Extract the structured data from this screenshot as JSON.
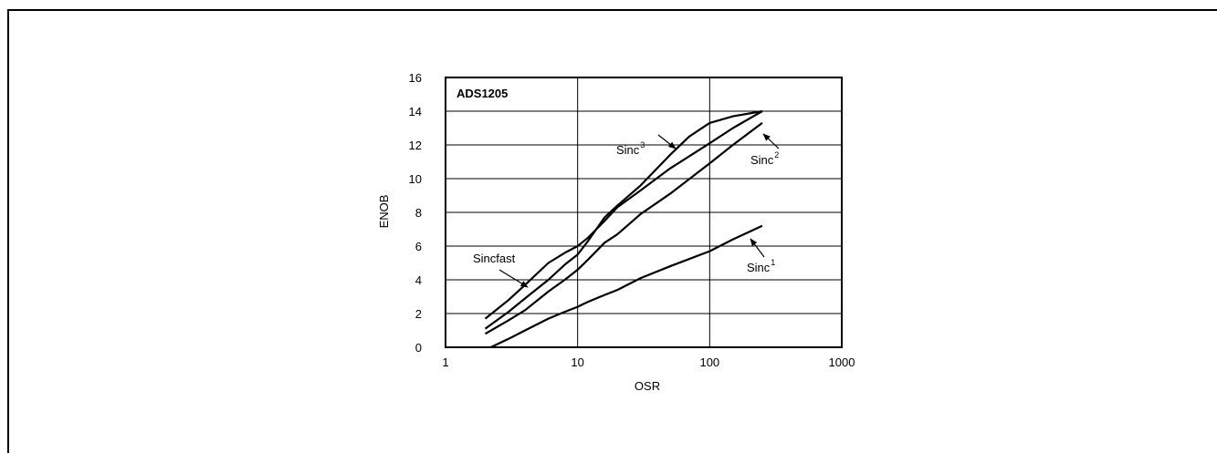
{
  "chart_data": {
    "type": "line",
    "title": "ADS1205",
    "xlabel": "OSR",
    "ylabel": "ENOB",
    "xscale": "log",
    "xlim": [
      1,
      1000
    ],
    "ylim": [
      0,
      16
    ],
    "grid": true,
    "x_ticks": [
      "1",
      "10",
      "100",
      "1000"
    ],
    "y_ticks": [
      "0",
      "2",
      "4",
      "6",
      "8",
      "10",
      "12",
      "14",
      "16"
    ],
    "series": [
      {
        "name": "Sincfast",
        "base": "Sincfast",
        "sup": "",
        "points": [
          [
            2,
            1.7
          ],
          [
            3,
            2.8
          ],
          [
            4,
            3.7
          ],
          [
            6,
            5.0
          ],
          [
            8,
            5.6
          ],
          [
            10,
            6.0
          ],
          [
            12,
            6.5
          ],
          [
            16,
            7.5
          ],
          [
            20,
            8.3
          ],
          [
            30,
            9.3
          ],
          [
            50,
            10.6
          ],
          [
            100,
            12.1
          ],
          [
            150,
            13.0
          ],
          [
            250,
            14.0
          ]
        ]
      },
      {
        "name": "Sinc3",
        "base": "Sinc",
        "sup": "3",
        "points": [
          [
            2,
            1.1
          ],
          [
            3,
            2.1
          ],
          [
            4,
            2.9
          ],
          [
            6,
            4.0
          ],
          [
            8,
            4.9
          ],
          [
            10,
            5.5
          ],
          [
            12,
            6.3
          ],
          [
            16,
            7.7
          ],
          [
            20,
            8.4
          ],
          [
            30,
            9.6
          ],
          [
            50,
            11.4
          ],
          [
            70,
            12.5
          ],
          [
            100,
            13.3
          ],
          [
            150,
            13.7
          ],
          [
            250,
            14.0
          ]
        ]
      },
      {
        "name": "Sinc2",
        "base": "Sinc",
        "sup": "2",
        "points": [
          [
            2,
            0.8
          ],
          [
            3,
            1.6
          ],
          [
            4,
            2.2
          ],
          [
            6,
            3.3
          ],
          [
            8,
            4.0
          ],
          [
            10,
            4.6
          ],
          [
            12,
            5.2
          ],
          [
            16,
            6.2
          ],
          [
            20,
            6.7
          ],
          [
            30,
            7.9
          ],
          [
            50,
            9.1
          ],
          [
            100,
            10.9
          ],
          [
            150,
            12.0
          ],
          [
            250,
            13.3
          ]
        ]
      },
      {
        "name": "Sinc1",
        "base": "Sinc",
        "sup": "1",
        "points": [
          [
            2.2,
            0.0
          ],
          [
            3,
            0.5
          ],
          [
            4,
            1.0
          ],
          [
            6,
            1.7
          ],
          [
            8,
            2.1
          ],
          [
            10,
            2.4
          ],
          [
            12,
            2.7
          ],
          [
            16,
            3.1
          ],
          [
            20,
            3.4
          ],
          [
            30,
            4.1
          ],
          [
            50,
            4.8
          ],
          [
            100,
            5.7
          ],
          [
            150,
            6.4
          ],
          [
            250,
            7.2
          ]
        ]
      }
    ]
  }
}
